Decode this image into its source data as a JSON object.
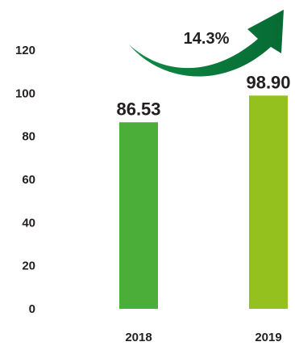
{
  "chart_data": {
    "type": "bar",
    "categories": [
      "2018",
      "2019"
    ],
    "values": [
      86.53,
      98.9
    ],
    "value_labels": [
      "86.53",
      "98.90"
    ],
    "bar_colors": [
      "#4aae38",
      "#95c11f"
    ],
    "yticks": [
      "0",
      "20",
      "40",
      "60",
      "80",
      "100",
      "120"
    ],
    "ylim": [
      0,
      120
    ],
    "title": "",
    "xlabel": "",
    "ylabel": "",
    "grid": false,
    "annotation": {
      "text": "14.3%",
      "arrow_color": "#0b7b3c",
      "arrow_icon": "upward-curved-growth-arrow-icon"
    }
  }
}
